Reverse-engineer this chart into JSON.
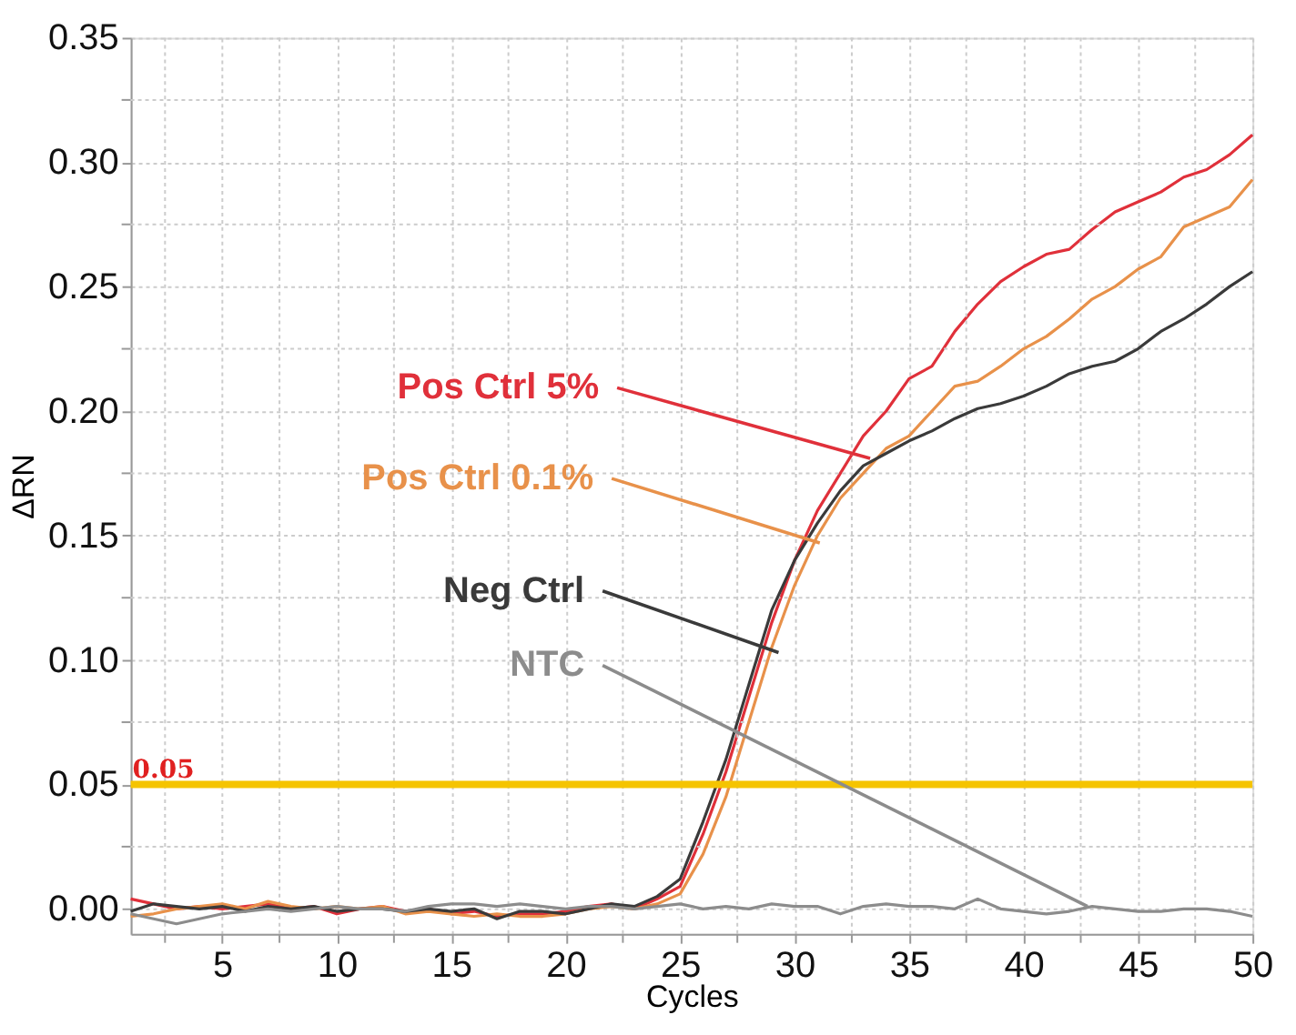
{
  "chart_data": {
    "type": "line",
    "xlabel": "Cycles",
    "ylabel": "ΔRN",
    "x": [
      1,
      2,
      3,
      4,
      5,
      6,
      7,
      8,
      9,
      10,
      11,
      12,
      13,
      14,
      15,
      16,
      17,
      18,
      19,
      20,
      21,
      22,
      23,
      24,
      25,
      26,
      27,
      28,
      29,
      30,
      31,
      32,
      33,
      34,
      35,
      36,
      37,
      38,
      39,
      40,
      41,
      42,
      43,
      44,
      45,
      46,
      47,
      48,
      49,
      50
    ],
    "series": [
      {
        "color": "#e0303a",
        "values": [
          0.004,
          0.002,
          0.0,
          0.001,
          0.0,
          0.001,
          0.002,
          0.0,
          0.001,
          -0.002,
          0.0,
          0.001,
          -0.001,
          0.0,
          -0.002,
          -0.001,
          -0.003,
          -0.002,
          -0.002,
          -0.001,
          0.001,
          0.002,
          0.0,
          0.004,
          0.009,
          0.03,
          0.055,
          0.085,
          0.115,
          0.14,
          0.16,
          0.175,
          0.19,
          0.2,
          0.213,
          0.218,
          0.232,
          0.243,
          0.252,
          0.258,
          0.263,
          0.265,
          0.273,
          0.28,
          0.284,
          0.288,
          0.294,
          0.297,
          0.303,
          0.311
        ]
      },
      {
        "color": "#e8914a",
        "values": [
          -0.003,
          -0.002,
          0.0,
          0.001,
          0.002,
          0.0,
          0.003,
          0.001,
          0.0,
          0.001,
          0.0,
          0.001,
          -0.002,
          -0.001,
          -0.002,
          -0.003,
          -0.002,
          -0.003,
          -0.003,
          -0.002,
          0.0,
          0.001,
          0.0,
          0.002,
          0.006,
          0.022,
          0.045,
          0.075,
          0.105,
          0.13,
          0.15,
          0.165,
          0.175,
          0.185,
          0.19,
          0.2,
          0.21,
          0.212,
          0.218,
          0.225,
          0.23,
          0.237,
          0.245,
          0.25,
          0.257,
          0.262,
          0.274,
          0.278,
          0.282,
          0.293
        ]
      },
      {
        "color": "#3a3a3a",
        "values": [
          -0.001,
          0.002,
          0.001,
          0.0,
          0.001,
          -0.001,
          0.001,
          0.0,
          0.001,
          -0.001,
          0.0,
          0.0,
          -0.001,
          0.0,
          -0.001,
          0.0,
          -0.004,
          -0.001,
          -0.001,
          -0.002,
          0.0,
          0.002,
          0.001,
          0.005,
          0.012,
          0.035,
          0.06,
          0.09,
          0.12,
          0.14,
          0.155,
          0.168,
          0.178,
          0.183,
          0.188,
          0.192,
          0.197,
          0.201,
          0.203,
          0.206,
          0.21,
          0.215,
          0.218,
          0.22,
          0.225,
          0.232,
          0.237,
          0.243,
          0.25,
          0.256
        ]
      },
      {
        "color": "#8c8c8c",
        "values": [
          -0.002,
          -0.004,
          -0.006,
          -0.004,
          -0.002,
          -0.001,
          0.0,
          -0.001,
          0.0,
          0.001,
          0.0,
          0.0,
          -0.001,
          0.001,
          0.002,
          0.002,
          0.001,
          0.002,
          0.001,
          0.0,
          0.001,
          0.001,
          0.0,
          0.001,
          0.002,
          0.0,
          0.001,
          0.0,
          0.002,
          0.001,
          0.001,
          -0.002,
          0.001,
          0.002,
          0.001,
          0.001,
          0.0,
          0.004,
          0.0,
          -0.001,
          -0.002,
          -0.001,
          0.001,
          0.0,
          -0.001,
          -0.001,
          0.0,
          0.0,
          -0.001,
          -0.003
        ]
      }
    ],
    "xlim": [
      1,
      50
    ],
    "ylim": [
      -0.01,
      0.35
    ],
    "xticks": [
      {
        "value": 2.5,
        "label": null
      },
      5,
      {
        "value": 7.5,
        "label": null
      },
      10,
      {
        "value": 12.5,
        "label": null
      },
      15,
      {
        "value": 17.5,
        "label": null
      },
      20,
      {
        "value": 22.5,
        "label": null
      },
      25,
      {
        "value": 27.5,
        "label": null
      },
      30,
      {
        "value": 32.5,
        "label": null
      },
      35,
      {
        "value": 37.5,
        "label": null
      },
      40,
      {
        "value": 42.5,
        "label": null
      },
      45,
      {
        "value": 47.5,
        "label": null
      },
      50
    ],
    "yticks": [
      {
        "value": 0.0,
        "label": "0.00"
      },
      {
        "value": 0.025,
        "label": null
      },
      {
        "value": 0.05,
        "label": "0.05"
      },
      {
        "value": 0.075,
        "label": null
      },
      {
        "value": 0.1,
        "label": "0.10"
      },
      {
        "value": 0.125,
        "label": null
      },
      {
        "value": 0.15,
        "label": "0.15"
      },
      {
        "value": 0.175,
        "label": null
      },
      {
        "value": 0.2,
        "label": "0.20"
      },
      {
        "value": 0.225,
        "label": null
      },
      {
        "value": 0.25,
        "label": "0.25"
      },
      {
        "value": 0.275,
        "label": null
      },
      {
        "value": 0.3,
        "label": "0.30"
      },
      {
        "value": 0.325,
        "label": null
      },
      {
        "value": 0.35,
        "label": "0.35"
      }
    ],
    "ref_lines": [
      {
        "axis": "y",
        "value": 0.05,
        "label": "0.05",
        "color": "#f5c400"
      }
    ],
    "annotations": [
      {
        "text": "Pos Ctrl 5%",
        "x": 33.3,
        "y": 0.181
      },
      {
        "text": "Pos Ctrl 0.1%",
        "x": 31.1,
        "y": 0.147
      },
      {
        "text": "Neg Ctrl",
        "x": 29.3,
        "y": 0.103
      },
      {
        "text": "NTC",
        "x": 42.8,
        "y": 0.001
      }
    ],
    "grid": true,
    "marker": "none",
    "line_style": "solid"
  }
}
